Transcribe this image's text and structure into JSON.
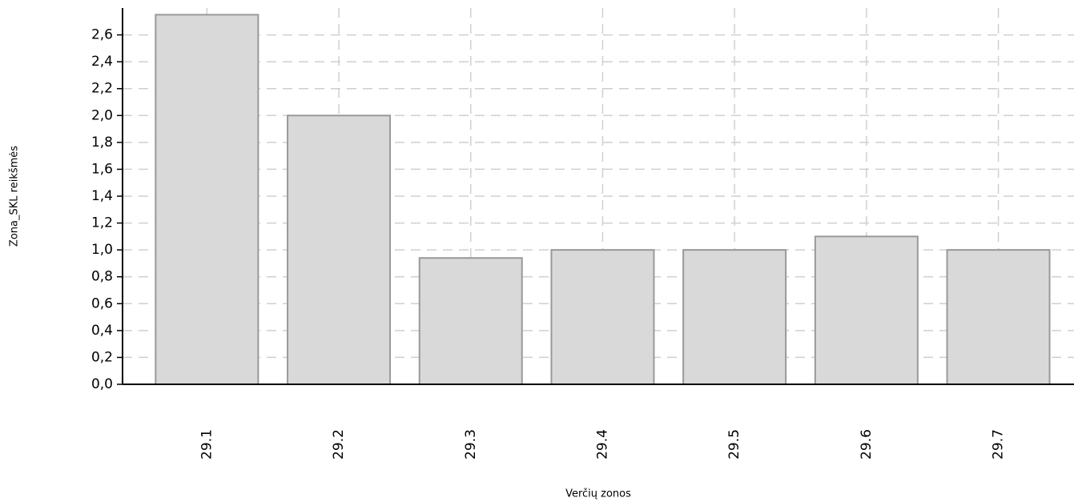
{
  "chart_data": {
    "type": "bar",
    "x_label": "Verčių zonos",
    "y_label": "Zona_SKL reikšmės",
    "categories": [
      "29.1",
      "29.2",
      "29.3",
      "29.4",
      "29.5",
      "29.6",
      "29.7"
    ],
    "values": [
      2.75,
      2.0,
      0.94,
      1.0,
      1.0,
      1.1,
      1.0
    ],
    "color": "#d9d9d9",
    "ylim": [
      0,
      2.8
    ],
    "yticks": [
      {
        "value": 0,
        "label": "0,0"
      },
      {
        "value": 0.2,
        "label": "0,2"
      },
      {
        "value": 0.4,
        "label": "0,4"
      },
      {
        "value": 0.6,
        "label": "0,6"
      },
      {
        "value": 0.8,
        "label": "0,8"
      },
      {
        "value": 1.0,
        "label": "1,0"
      },
      {
        "value": 1.2,
        "label": "1,2"
      },
      {
        "value": 1.4,
        "label": "1,4"
      },
      {
        "value": 1.6,
        "label": "1,6"
      },
      {
        "value": 1.8,
        "label": "1,8"
      },
      {
        "value": 2.0,
        "label": "2,0"
      },
      {
        "value": 2.2,
        "label": "2,2"
      },
      {
        "value": 2.4,
        "label": "2,4"
      },
      {
        "value": 2.6,
        "label": "2,6"
      }
    ],
    "grid": true
  }
}
